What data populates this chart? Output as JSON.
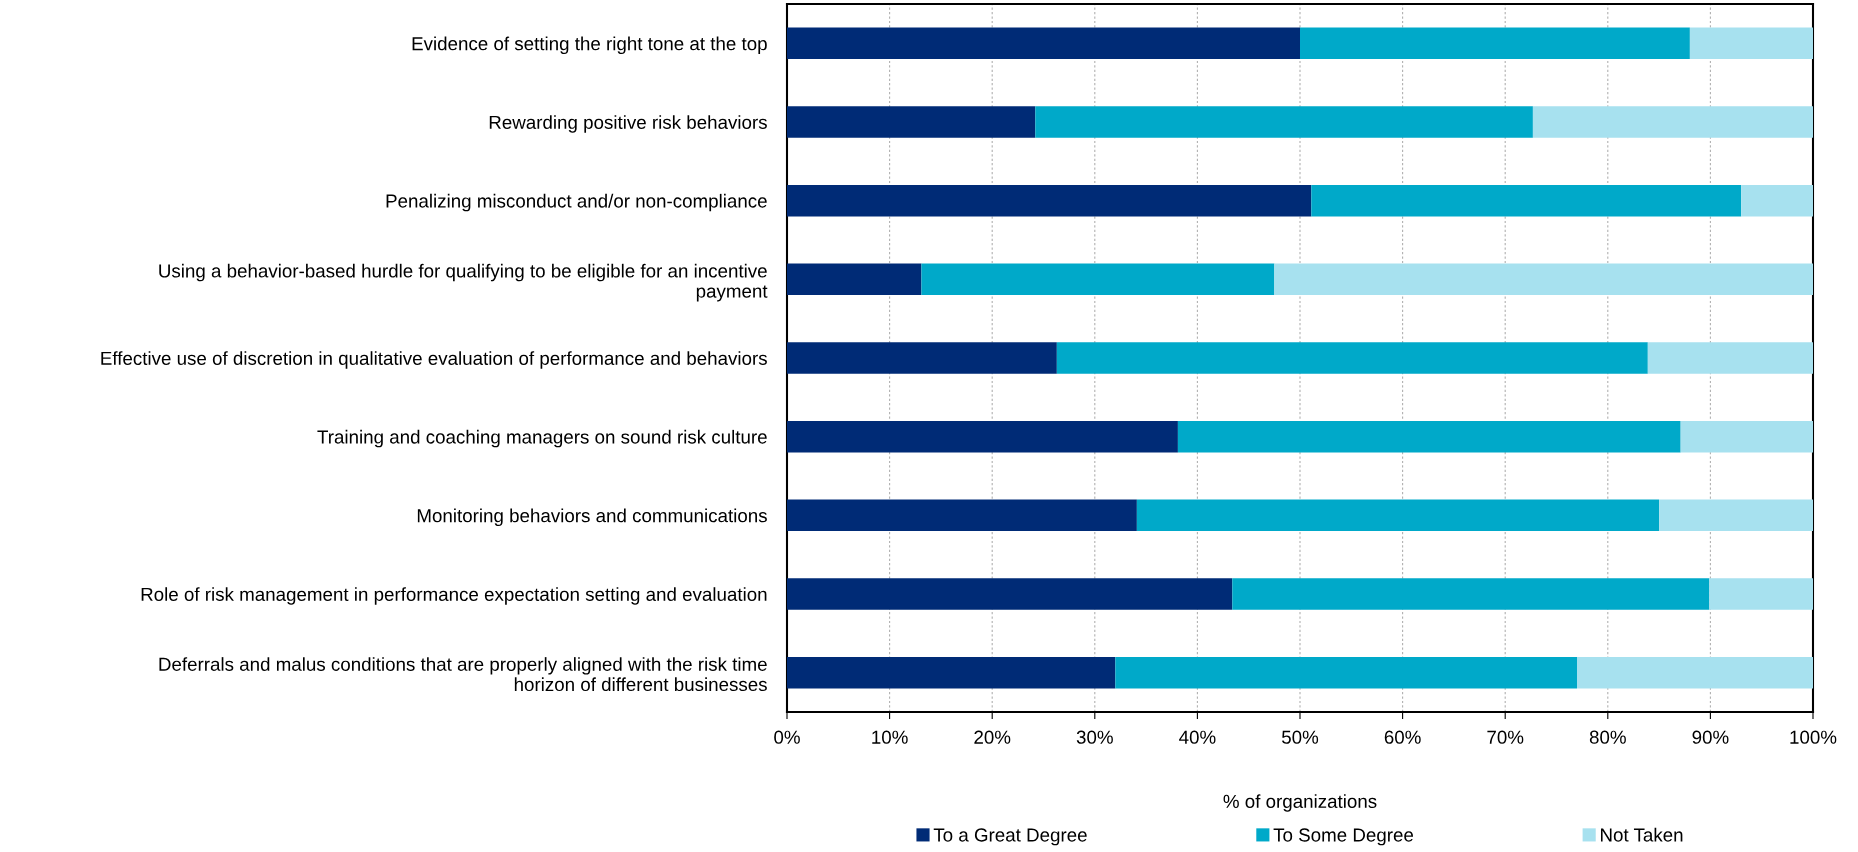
{
  "chart_data": {
    "type": "bar",
    "orientation": "horizontal",
    "stacked": true,
    "categories": [
      "Evidence of setting the right tone at the top",
      "Rewarding positive risk behaviors",
      "Penalizing misconduct and/or non-compliance",
      "Using a behavior-based hurdle for qualifying to be eligible for an incentive\npayment",
      "Effective use of discretion in qualitative evaluation of performance and behaviors",
      "Training and coaching managers on sound risk culture",
      "Monitoring behaviors and communications",
      "Role of risk management in performance expectation setting and evaluation",
      "Deferrals and malus conditions that are properly aligned with the risk time\nhorizon of different businesses"
    ],
    "series": [
      {
        "name": "To a Great Degree",
        "color": "#002b76",
        "values": [
          50.0,
          24.2,
          51.1,
          13.1,
          26.3,
          38.1,
          34.1,
          43.4,
          32.0
        ]
      },
      {
        "name": "To Some Degree",
        "color": "#00a9c9",
        "values": [
          38.0,
          48.5,
          41.9,
          34.4,
          57.6,
          49.0,
          50.9,
          46.5,
          45.0
        ]
      },
      {
        "name": "Not Taken",
        "color": "#a7e1ef",
        "values": [
          12.0,
          27.3,
          7.0,
          52.5,
          16.1,
          12.9,
          15.0,
          10.1,
          23.0
        ]
      }
    ],
    "xlabel": "% of organizations",
    "xlim": [
      0,
      100
    ],
    "xticks": [
      {
        "value": 0,
        "label": "0%"
      },
      {
        "value": 10,
        "label": "10%"
      },
      {
        "value": 20,
        "label": "20%"
      },
      {
        "value": 30,
        "label": "30%"
      },
      {
        "value": 40,
        "label": "40%"
      },
      {
        "value": 50,
        "label": "50%"
      },
      {
        "value": 60,
        "label": "60%"
      },
      {
        "value": 70,
        "label": "70%"
      },
      {
        "value": 80,
        "label": "80%"
      },
      {
        "value": 90,
        "label": "90%"
      },
      {
        "value": 100,
        "label": "100%"
      }
    ],
    "grid": "x",
    "legend": "bottom"
  }
}
